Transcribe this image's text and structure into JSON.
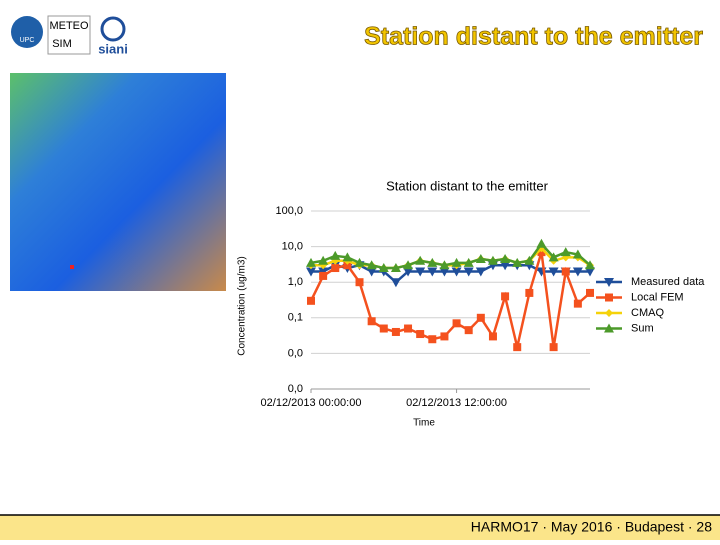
{
  "slide": {
    "title": "Station distant to the emitter",
    "footer": "HARMO17 · May 2016 · Budapest · 28",
    "logos": [
      "UPC",
      "METEO",
      "SIM",
      "siani"
    ]
  },
  "chart_data": {
    "type": "line",
    "title": "Station distant to the emitter",
    "y_label": "Concentration (ug/m3)",
    "x_label": "Time",
    "x": [
      0,
      1,
      2,
      3,
      4,
      5,
      6,
      7,
      8,
      9,
      10,
      11,
      12,
      13,
      14,
      15,
      16,
      17,
      18,
      19,
      20,
      21,
      22,
      23
    ],
    "xlim": [
      0,
      23
    ],
    "xticks": [
      {
        "value": 0,
        "label": "02/12/2013 00:00:00"
      },
      {
        "value": 12,
        "label": "02/12/2013 12:00:00"
      }
    ],
    "log_scale": true,
    "ylim": [
      0.001,
      100
    ],
    "yticks": [
      {
        "value": 0.001,
        "label": "0,0"
      },
      {
        "value": 0.01,
        "label": "0,0"
      },
      {
        "value": 0.1,
        "label": "0,1"
      },
      {
        "value": 1,
        "label": "1,0"
      },
      {
        "value": 10,
        "label": "10,0"
      },
      {
        "value": 100,
        "label": "100,0"
      }
    ],
    "grid": true,
    "legend": "right",
    "series": [
      {
        "name": "Measured data",
        "color": "#1f4e9a",
        "marker": "triangle-down",
        "values": [
          2,
          2,
          3,
          2.5,
          3,
          2,
          2,
          1,
          2,
          2,
          2,
          2,
          2,
          2,
          2,
          3,
          3,
          3,
          3,
          2,
          2,
          2,
          2,
          2
        ]
      },
      {
        "name": "Local FEM",
        "color": "#f4511e",
        "marker": "square",
        "values": [
          0.3,
          1.5,
          2.5,
          3,
          1,
          0.08,
          0.05,
          0.04,
          0.05,
          0.035,
          0.025,
          0.03,
          0.07,
          0.045,
          0.1,
          0.03,
          0.4,
          0.015,
          0.5,
          7,
          0.015,
          2,
          0.25,
          0.5
        ]
      },
      {
        "name": "CMAQ",
        "color": "#f5d20a",
        "marker": "diamond",
        "values": [
          3,
          3,
          4,
          4,
          3,
          3,
          2.5,
          2.5,
          3,
          4,
          3.5,
          3,
          3,
          3.5,
          4.5,
          4,
          4.5,
          3.5,
          4,
          9,
          4,
          5,
          5,
          3
        ]
      },
      {
        "name": "Sum",
        "color": "#4c9a2a",
        "marker": "triangle-up",
        "values": [
          3.5,
          4,
          5.5,
          5,
          3.5,
          3,
          2.5,
          2.5,
          3,
          4,
          3.5,
          3,
          3.5,
          3.5,
          4.5,
          4,
          4.5,
          3.5,
          4,
          12,
          5,
          7,
          6,
          3
        ]
      }
    ]
  }
}
